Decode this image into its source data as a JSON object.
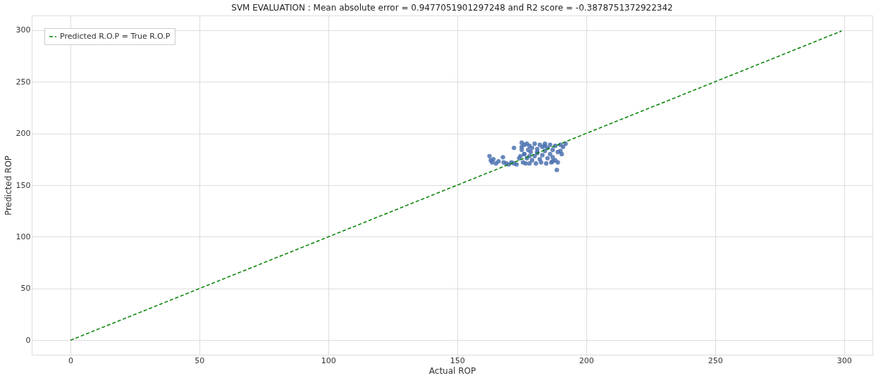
{
  "chart_data": {
    "type": "scatter",
    "title": "SVM EVALUATION : Mean absolute error = 0.9477051901297248   and   R2 score = -0.3878751372922342",
    "xlabel": "Actual ROP",
    "ylabel": "Predicted ROP",
    "xlim": [
      -15,
      311
    ],
    "ylim": [
      -14,
      314
    ],
    "xticks": [
      0,
      50,
      100,
      150,
      200,
      250,
      300
    ],
    "yticks": [
      0,
      50,
      100,
      150,
      200,
      250,
      300
    ],
    "grid": true,
    "legend": "top left",
    "series": [
      {
        "color": "#4c72b0",
        "marker": "circle",
        "x": [
          162.5,
          163,
          163.5,
          164,
          165,
          166,
          167.7,
          168,
          169,
          170,
          171,
          172,
          173,
          174,
          174.5,
          175,
          175,
          175.5,
          176,
          176,
          176.5,
          177,
          177,
          177.5,
          178,
          178,
          178.5,
          179,
          179,
          180,
          180,
          180.5,
          181,
          181,
          182,
          182,
          182.5,
          183,
          183,
          184,
          184,
          184.5,
          185,
          185,
          186,
          186,
          186.5,
          187,
          187,
          188,
          188,
          188.6,
          189,
          189,
          190,
          190,
          190.5,
          191,
          192,
          175,
          178,
          181,
          184,
          187,
          172,
          176
        ],
        "values": [
          178,
          174,
          172,
          175,
          171,
          173,
          177,
          172,
          171,
          170,
          172,
          171,
          170,
          176,
          178,
          191,
          187,
          172,
          189,
          180,
          171,
          190,
          176,
          184,
          188,
          171,
          182,
          186,
          174,
          190,
          178,
          171,
          185,
          181,
          189,
          175,
          172,
          187,
          179,
          190,
          183,
          171,
          186,
          176,
          189,
          180,
          172,
          184,
          177,
          188,
          174,
          164.7,
          182,
          172,
          189,
          183,
          180,
          187,
          190,
          184,
          178,
          182,
          188,
          173,
          186,
          180
        ]
      },
      {
        "type": "line",
        "name": "Predicted R.O.P = True R.O.P",
        "color": "#008000",
        "line_style": "dashed",
        "x": [
          0,
          299
        ],
        "values": [
          0,
          299
        ]
      }
    ]
  }
}
